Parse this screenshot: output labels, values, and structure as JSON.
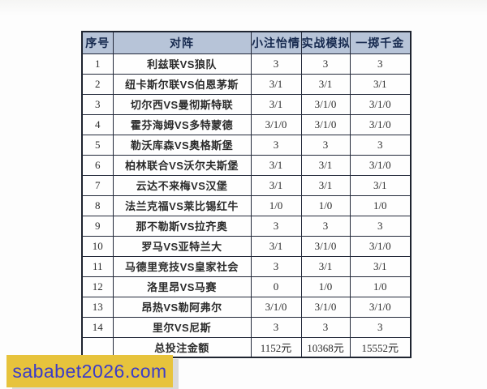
{
  "table": {
    "headers": [
      "序号",
      "对阵",
      "小注怡情",
      "实战模拟",
      "一掷千金"
    ],
    "rows": [
      {
        "no": "1",
        "match": "利兹联VS狼队",
        "values": [
          "3",
          "3",
          "3"
        ]
      },
      {
        "no": "2",
        "match": "纽卡斯尔联VS伯恩茅斯",
        "values": [
          "3/1",
          "3/1",
          "3/1"
        ]
      },
      {
        "no": "3",
        "match": "切尔西VS曼彻斯特联",
        "values": [
          "3/1",
          "3/1/0",
          "3/1/0"
        ]
      },
      {
        "no": "4",
        "match": "霍芬海姆VS多特蒙德",
        "values": [
          "3/1/0",
          "3/1/0",
          "3/1/0"
        ]
      },
      {
        "no": "5",
        "match": "勒沃库森VS奥格斯堡",
        "values": [
          "3",
          "3",
          "3"
        ]
      },
      {
        "no": "6",
        "match": "柏林联合VS沃尔夫斯堡",
        "values": [
          "3/1",
          "3/1",
          "3/1/0"
        ]
      },
      {
        "no": "7",
        "match": "云达不来梅VS汉堡",
        "values": [
          "3/1",
          "3/1",
          "3/1"
        ]
      },
      {
        "no": "8",
        "match": "法兰克福VS莱比锡红牛",
        "values": [
          "1/0",
          "1/0",
          "1/0"
        ]
      },
      {
        "no": "9",
        "match": "那不勒斯VS拉齐奥",
        "values": [
          "3",
          "3",
          "3"
        ]
      },
      {
        "no": "10",
        "match": "罗马VS亚特兰大",
        "values": [
          "3/1",
          "3/1/0",
          "3/1/0"
        ]
      },
      {
        "no": "11",
        "match": "马德里竞技VS皇家社会",
        "values": [
          "3",
          "3/1",
          "3/1"
        ]
      },
      {
        "no": "12",
        "match": "洛里昂VS马赛",
        "values": [
          "0",
          "1/0",
          "1/0"
        ]
      },
      {
        "no": "13",
        "match": "昂热VS勒阿弗尔",
        "values": [
          "3/1/0",
          "3/1/0",
          "3/1/0"
        ]
      },
      {
        "no": "14",
        "match": "里尔VS尼斯",
        "values": [
          "3",
          "3",
          "3"
        ]
      }
    ],
    "total_row": {
      "no": "",
      "label": "总投注金额",
      "values": [
        "1152元",
        "10368元",
        "15552元"
      ]
    }
  },
  "watermark": {
    "text": "sababet2026.com",
    "background": "#e7c33c",
    "text_color": "#3b3bc8"
  },
  "colors": {
    "header_bg": "#b7c4d8",
    "header_text": "#16294e",
    "table_border": "#23293a",
    "body_text": "#2b2b2b",
    "page_bg": "#fbfbfb"
  }
}
